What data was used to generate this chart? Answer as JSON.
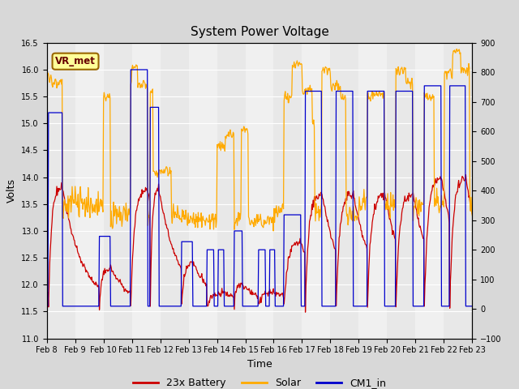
{
  "title": "System Power Voltage",
  "xlabel": "Time",
  "ylabel_left": "Volts",
  "ylim_left": [
    11.0,
    16.5
  ],
  "ylim_right": [
    -100,
    900
  ],
  "yticks_left": [
    11.0,
    11.5,
    12.0,
    12.5,
    13.0,
    13.5,
    14.0,
    14.5,
    15.0,
    15.5,
    16.0,
    16.5
  ],
  "yticks_right": [
    -100,
    0,
    100,
    200,
    300,
    400,
    500,
    600,
    700,
    800,
    900
  ],
  "xtick_labels": [
    "Feb 8",
    "Feb 9",
    "Feb 10",
    "Feb 11",
    "Feb 12",
    "Feb 13",
    "Feb 14",
    "Feb 15",
    "Feb 16",
    "Feb 17",
    "Feb 18",
    "Feb 19",
    "Feb 20",
    "Feb 21",
    "Feb 22",
    "Feb 23"
  ],
  "n_days": 15,
  "fig_bg_color": "#d8d8d8",
  "plot_bg_color": "#e8e8e8",
  "plot_bg_light": "#f4f4f4",
  "grid_color": "white",
  "battery_color": "#cc0000",
  "solar_color": "#ffaa00",
  "cm1_color": "#0000cc",
  "legend_entries": [
    "23x Battery",
    "Solar",
    "CM1_in"
  ],
  "vr_met_label": "VR_met",
  "vr_met_box_color": "#ffff99",
  "vr_met_border_color": "#996600",
  "title_fontsize": 11,
  "axis_fontsize": 9,
  "tick_fontsize": 7
}
